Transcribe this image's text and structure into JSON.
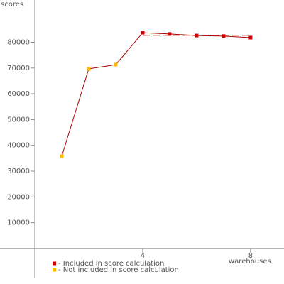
{
  "chart_data": {
    "type": "line",
    "y_label": "scores",
    "x_label": "warehouses",
    "x": [
      1,
      2,
      3,
      4,
      5,
      6,
      7,
      8
    ],
    "values": [
      35800,
      69700,
      71300,
      83700,
      83200,
      82600,
      82400,
      81800
    ],
    "included": [
      false,
      false,
      false,
      true,
      true,
      true,
      true,
      true
    ],
    "line_color": "#aa0000",
    "legend": [
      {
        "label": "- Included in score calculation",
        "color": "#cc0000"
      },
      {
        "label": "- Not included in score calculation",
        "color": "#ffbb00"
      }
    ],
    "score": 82700,
    "score_x": [
      4,
      8
    ],
    "xlim": [
      -1.29,
      9.24
    ],
    "ylim": [
      -13800,
      96400
    ],
    "xticks": [
      4,
      8
    ],
    "yticks": [
      10000,
      20000,
      30000,
      40000,
      50000,
      60000,
      70000,
      80000
    ]
  }
}
